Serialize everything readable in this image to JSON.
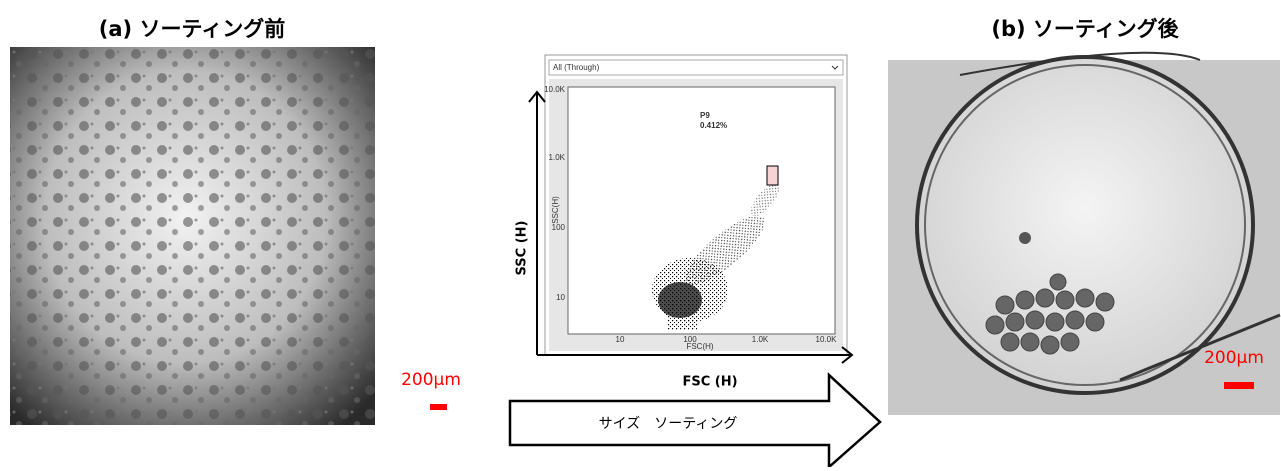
{
  "panel_a": {
    "title": "(a) ソーティング前",
    "scale_label": "200µm"
  },
  "plot": {
    "dropdown": "All (Through)",
    "y_axis_small": "SSC(H)",
    "x_axis_small": "FSC(H)",
    "yticks": [
      "10.0K",
      "1.0K",
      "100",
      "10"
    ],
    "xticks": [
      "10",
      "100",
      "1.0K",
      "10.0K"
    ],
    "gate": {
      "name": "P9",
      "percent": "0.412%"
    },
    "y_axis_label": "SSC (H)",
    "x_axis_label": "FSC (H)"
  },
  "arrow_label": "サイズ　ソーティング",
  "panel_b": {
    "title": "(b) ソーティング後",
    "scale_label": "200µm"
  }
}
